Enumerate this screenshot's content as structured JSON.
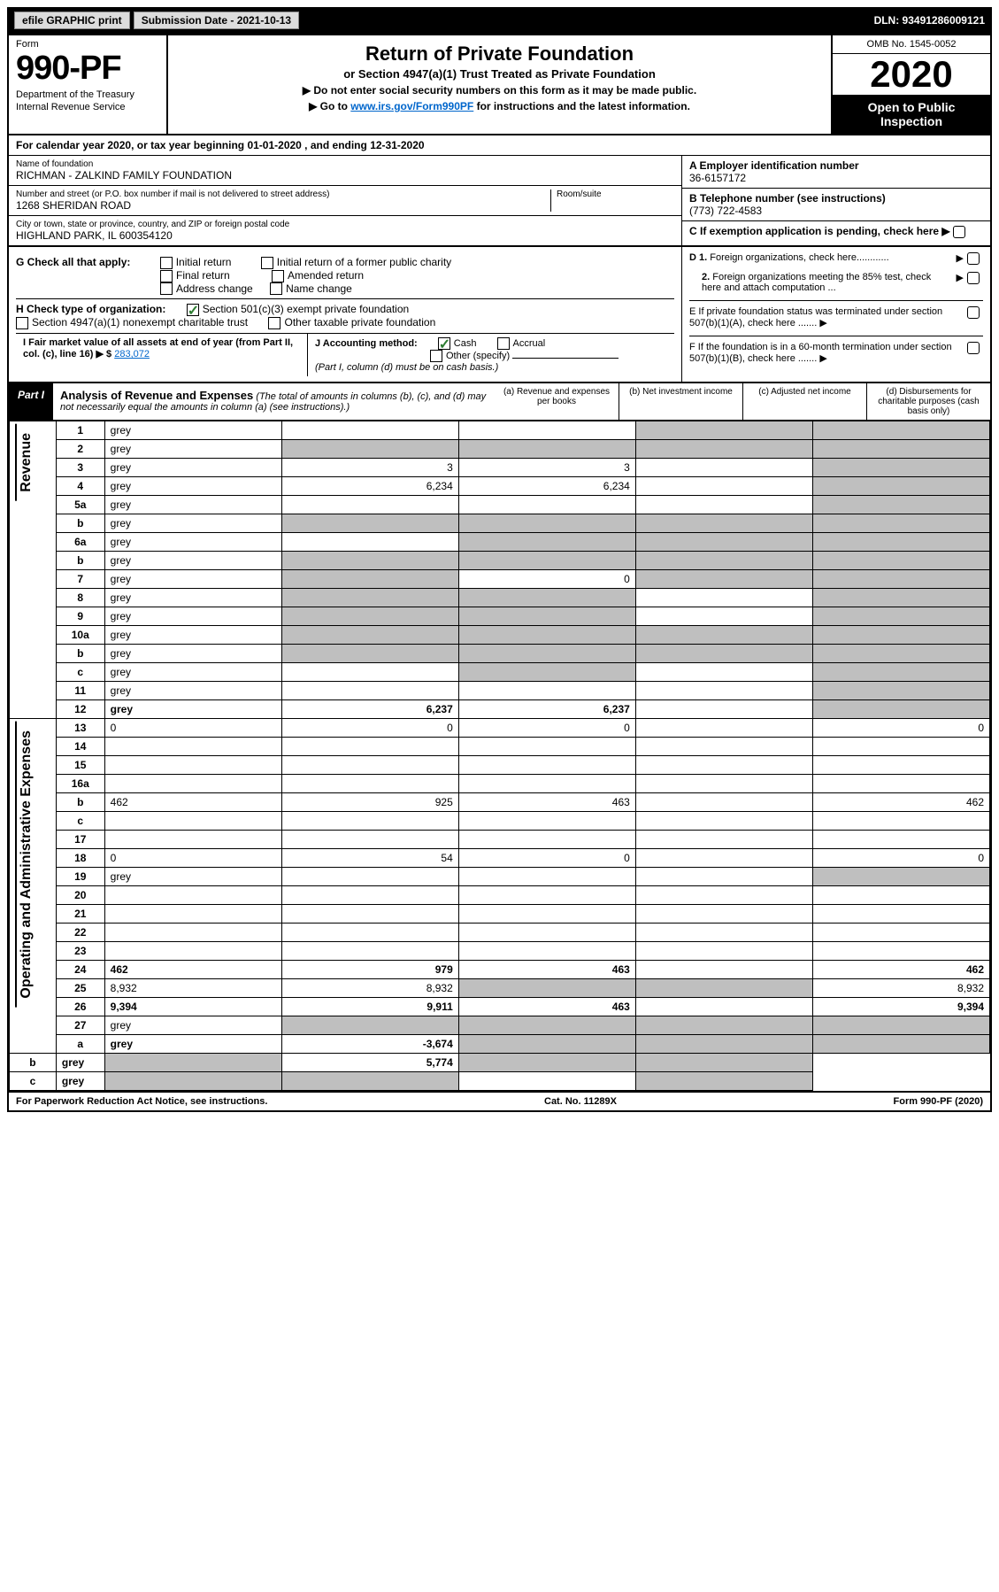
{
  "topbar": {
    "efile": "efile GRAPHIC print",
    "submission_label": "Submission Date - 2021-10-13",
    "dln": "DLN: 93491286009121"
  },
  "header": {
    "form_word": "Form",
    "form_number": "990-PF",
    "dept": "Department of the Treasury",
    "irs": "Internal Revenue Service",
    "title": "Return of Private Foundation",
    "subtitle": "or Section 4947(a)(1) Trust Treated as Private Foundation",
    "note1": "▶ Do not enter social security numbers on this form as it may be made public.",
    "note2_prefix": "▶ Go to ",
    "note2_link": "www.irs.gov/Form990PF",
    "note2_suffix": " for instructions and the latest information.",
    "omb": "OMB No. 1545-0052",
    "year": "2020",
    "open": "Open to Public Inspection"
  },
  "calendar": {
    "prefix": "For calendar year 2020, or tax year beginning ",
    "begin": "01-01-2020",
    "mid": " , and ending ",
    "end": "12-31-2020"
  },
  "info": {
    "name_lbl": "Name of foundation",
    "name_val": "RICHMAN - ZALKIND FAMILY FOUNDATION",
    "addr_lbl": "Number and street (or P.O. box number if mail is not delivered to street address)",
    "addr_val": "1268 SHERIDAN ROAD",
    "room_lbl": "Room/suite",
    "city_lbl": "City or town, state or province, country, and ZIP or foreign postal code",
    "city_val": "HIGHLAND PARK, IL  600354120",
    "a_lbl": "A Employer identification number",
    "a_val": "36-6157172",
    "b_lbl": "B Telephone number (see instructions)",
    "b_val": "(773) 722-4583",
    "c_lbl": "C If exemption application is pending, check here ▶"
  },
  "checks": {
    "g_lbl": "G Check all that apply:",
    "g_opts": [
      "Initial return",
      "Initial return of a former public charity",
      "Final return",
      "Amended return",
      "Address change",
      "Name change"
    ],
    "h_lbl": "H Check type of organization:",
    "h_opt1": "Section 501(c)(3) exempt private foundation",
    "h_opt2": "Section 4947(a)(1) nonexempt charitable trust",
    "h_opt3": "Other taxable private foundation",
    "i_lbl": "I Fair market value of all assets at end of year (from Part II, col. (c), line 16) ▶ $",
    "i_val": "283,072",
    "j_lbl": "J Accounting method:",
    "j_cash": "Cash",
    "j_accrual": "Accrual",
    "j_other": "Other (specify)",
    "j_note": "(Part I, column (d) must be on cash basis.)",
    "d1": "D 1. Foreign organizations, check here............ ▶",
    "d2": "2. Foreign organizations meeting the 85% test, check here and attach computation ... ▶",
    "e": "E  If private foundation status was terminated under section 507(b)(1)(A), check here ....... ▶",
    "f": "F  If the foundation is in a 60-month termination under section 507(b)(1)(B), check here ....... ▶"
  },
  "part1": {
    "label": "Part I",
    "title": "Analysis of Revenue and Expenses",
    "title_note": "(The total of amounts in columns (b), (c), and (d) may not necessarily equal the amounts in column (a) (see instructions).)",
    "col_a": "(a) Revenue and expenses per books",
    "col_b": "(b) Net investment income",
    "col_c": "(c) Adjusted net income",
    "col_d": "(d) Disbursements for charitable purposes (cash basis only)"
  },
  "side_labels": {
    "revenue": "Revenue",
    "opex": "Operating and Administrative Expenses"
  },
  "rows": [
    {
      "n": "1",
      "d": "grey",
      "a": "",
      "b": "",
      "c": "grey"
    },
    {
      "n": "2",
      "d": "grey",
      "a": "grey",
      "b": "grey",
      "c": "grey"
    },
    {
      "n": "3",
      "d": "grey",
      "a": "3",
      "b": "3",
      "c": ""
    },
    {
      "n": "4",
      "d": "grey",
      "a": "6,234",
      "b": "6,234",
      "c": ""
    },
    {
      "n": "5a",
      "d": "grey",
      "a": "",
      "b": "",
      "c": ""
    },
    {
      "n": "b",
      "d": "grey",
      "a": "grey",
      "b": "grey",
      "c": "grey"
    },
    {
      "n": "6a",
      "d": "grey",
      "a": "",
      "b": "grey",
      "c": "grey"
    },
    {
      "n": "b",
      "d": "grey",
      "a": "grey",
      "b": "grey",
      "c": "grey"
    },
    {
      "n": "7",
      "d": "grey",
      "a": "grey",
      "b": "0",
      "c": "grey"
    },
    {
      "n": "8",
      "d": "grey",
      "a": "grey",
      "b": "grey",
      "c": ""
    },
    {
      "n": "9",
      "d": "grey",
      "a": "grey",
      "b": "grey",
      "c": ""
    },
    {
      "n": "10a",
      "d": "grey",
      "a": "grey",
      "b": "grey",
      "c": "grey"
    },
    {
      "n": "b",
      "d": "grey",
      "a": "grey",
      "b": "grey",
      "c": "grey"
    },
    {
      "n": "c",
      "d": "grey",
      "a": "",
      "b": "grey",
      "c": ""
    },
    {
      "n": "11",
      "d": "grey",
      "a": "",
      "b": "",
      "c": ""
    },
    {
      "n": "12",
      "d": "grey",
      "a": "6,237",
      "b": "6,237",
      "c": "",
      "bold": true
    },
    {
      "n": "13",
      "d": "0",
      "a": "0",
      "b": "0",
      "c": ""
    },
    {
      "n": "14",
      "d": "",
      "a": "",
      "b": "",
      "c": ""
    },
    {
      "n": "15",
      "d": "",
      "a": "",
      "b": "",
      "c": ""
    },
    {
      "n": "16a",
      "d": "",
      "a": "",
      "b": "",
      "c": ""
    },
    {
      "n": "b",
      "d": "462",
      "a": "925",
      "b": "463",
      "c": ""
    },
    {
      "n": "c",
      "d": "",
      "a": "",
      "b": "",
      "c": ""
    },
    {
      "n": "17",
      "d": "",
      "a": "",
      "b": "",
      "c": ""
    },
    {
      "n": "18",
      "d": "0",
      "a": "54",
      "b": "0",
      "c": ""
    },
    {
      "n": "19",
      "d": "grey",
      "a": "",
      "b": "",
      "c": ""
    },
    {
      "n": "20",
      "d": "",
      "a": "",
      "b": "",
      "c": ""
    },
    {
      "n": "21",
      "d": "",
      "a": "",
      "b": "",
      "c": ""
    },
    {
      "n": "22",
      "d": "",
      "a": "",
      "b": "",
      "c": ""
    },
    {
      "n": "23",
      "d": "",
      "a": "",
      "b": "",
      "c": ""
    },
    {
      "n": "24",
      "d": "462",
      "a": "979",
      "b": "463",
      "c": "",
      "bold": true
    },
    {
      "n": "25",
      "d": "8,932",
      "a": "8,932",
      "b": "grey",
      "c": "grey"
    },
    {
      "n": "26",
      "d": "9,394",
      "a": "9,911",
      "b": "463",
      "c": "",
      "bold": true
    },
    {
      "n": "27",
      "d": "grey",
      "a": "grey",
      "b": "grey",
      "c": "grey"
    },
    {
      "n": "a",
      "d": "grey",
      "a": "-3,674",
      "b": "grey",
      "c": "grey",
      "bold": true
    },
    {
      "n": "b",
      "d": "grey",
      "a": "grey",
      "b": "5,774",
      "c": "grey",
      "bold": true
    },
    {
      "n": "c",
      "d": "grey",
      "a": "grey",
      "b": "grey",
      "c": "",
      "bold": true
    }
  ],
  "footer": {
    "left": "For Paperwork Reduction Act Notice, see instructions.",
    "center": "Cat. No. 11289X",
    "right": "Form 990-PF (2020)"
  },
  "colors": {
    "black": "#000000",
    "grey_fill": "#bfbfbf",
    "button_grey": "#dcdcdc",
    "link_blue": "#0066cc",
    "check_green": "#2e7d32"
  }
}
